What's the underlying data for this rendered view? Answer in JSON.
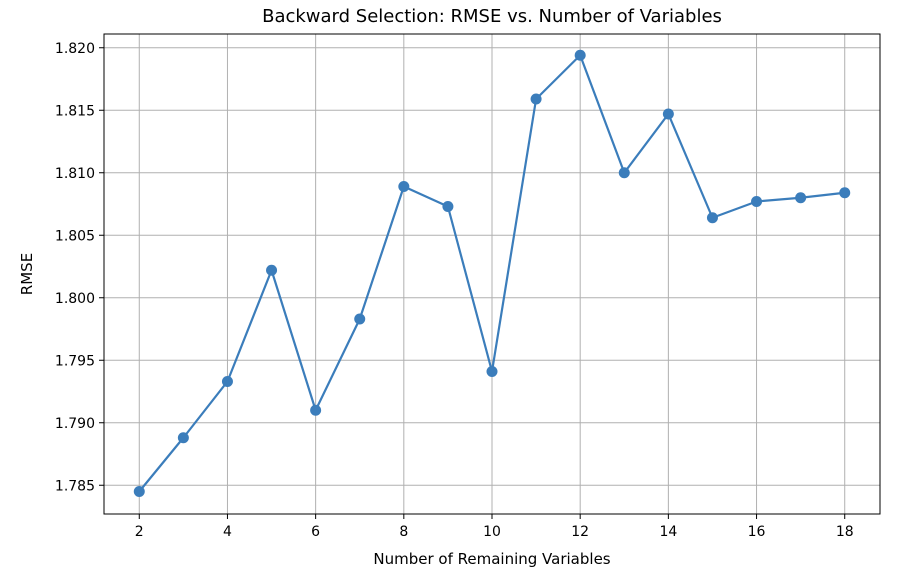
{
  "chart_data": {
    "type": "line",
    "title": "Backward Selection: RMSE vs. Number of Variables",
    "xlabel": "Number of Remaining Variables",
    "ylabel": "RMSE",
    "x": [
      2,
      3,
      4,
      5,
      6,
      7,
      8,
      9,
      10,
      11,
      12,
      13,
      14,
      15,
      16,
      17,
      18
    ],
    "series": [
      {
        "values": [
          1.7845,
          1.7888,
          1.7933,
          1.8022,
          1.791,
          1.7983,
          1.8089,
          1.8073,
          1.7941,
          1.8159,
          1.8194,
          1.81,
          1.8147,
          1.8064,
          1.8077,
          1.808,
          1.8084
        ],
        "color": "#3b7dbb"
      }
    ],
    "xlim": [
      1.2,
      18.8
    ],
    "ylim": [
      1.7827,
      1.8211
    ],
    "xticks": [
      2,
      4,
      6,
      8,
      10,
      12,
      14,
      16,
      18
    ],
    "xtick_labels": [
      "2",
      "4",
      "6",
      "8",
      "10",
      "12",
      "14",
      "16",
      "18"
    ],
    "yticks": [
      1.785,
      1.79,
      1.795,
      1.8,
      1.805,
      1.81,
      1.815,
      1.82
    ],
    "ytick_labels": [
      "1.785",
      "1.790",
      "1.795",
      "1.800",
      "1.805",
      "1.810",
      "1.815",
      "1.820"
    ],
    "grid": true,
    "legend": "none"
  }
}
